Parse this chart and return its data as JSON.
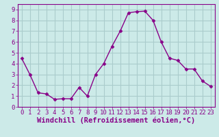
{
  "x": [
    0,
    1,
    2,
    3,
    4,
    5,
    6,
    7,
    8,
    9,
    10,
    11,
    12,
    13,
    14,
    15,
    16,
    17,
    18,
    19,
    20,
    21,
    22,
    23
  ],
  "y": [
    4.5,
    3.0,
    1.3,
    1.2,
    0.7,
    0.75,
    0.75,
    1.8,
    1.0,
    3.0,
    4.0,
    5.6,
    7.0,
    8.7,
    8.8,
    8.85,
    8.0,
    6.0,
    4.5,
    4.3,
    3.5,
    3.5,
    2.4,
    1.9
  ],
  "line_color": "#880088",
  "marker": "D",
  "marker_size": 2.5,
  "bg_color": "#cceae8",
  "grid_color": "#aacccc",
  "xlabel": "Windchill (Refroidissement éolien,°C)",
  "ylabel_ticks": [
    0,
    1,
    2,
    3,
    4,
    5,
    6,
    7,
    8,
    9
  ],
  "xlim": [
    -0.5,
    23.5
  ],
  "ylim": [
    0,
    9.5
  ],
  "xlabel_color": "#880088",
  "tick_color": "#880088",
  "xlabel_fontsize": 7.5,
  "tick_fontsize": 6.5,
  "spine_color": "#880088"
}
